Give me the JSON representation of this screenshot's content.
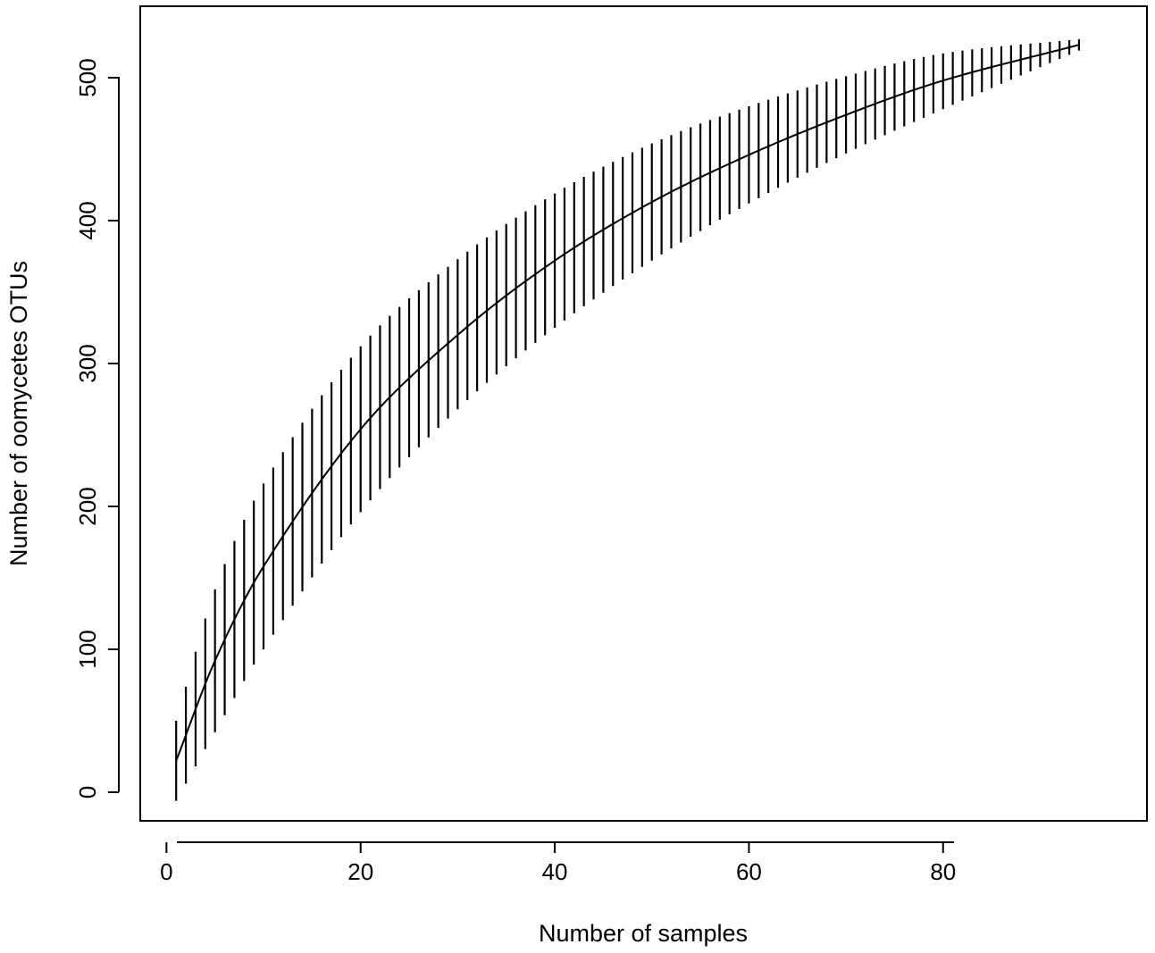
{
  "chart_data": {
    "type": "line",
    "title": "",
    "xlabel": "Number of samples",
    "ylabel": "Number of oomycetes OTUs",
    "xlim": [
      -2.7,
      101
    ],
    "ylim": [
      -20,
      550
    ],
    "xticks": [
      0,
      20,
      40,
      60,
      80
    ],
    "yticks": [
      0,
      100,
      200,
      300,
      400,
      500
    ],
    "grid": false,
    "legend": "none",
    "line_color": "#000000",
    "series": [
      {
        "n": 94,
        "x": [
          1,
          94
        ],
        "mean_start": 22,
        "mean_end": 523,
        "error_bars": {
          "lower_start": -6,
          "upper_start": 50,
          "lower_end": 519,
          "upper_end": 527
        },
        "sample_points": [
          {
            "x": 1,
            "y": 22,
            "lo": -6,
            "hi": 50
          },
          {
            "x": 5,
            "y": 92,
            "lo": 42,
            "hi": 142
          },
          {
            "x": 10,
            "y": 158,
            "lo": 100,
            "hi": 216
          },
          {
            "x": 20,
            "y": 254,
            "lo": 196,
            "hi": 312
          },
          {
            "x": 30,
            "y": 320,
            "lo": 268,
            "hi": 373
          },
          {
            "x": 40,
            "y": 372,
            "lo": 325,
            "hi": 419
          },
          {
            "x": 50,
            "y": 413,
            "lo": 372,
            "hi": 454
          },
          {
            "x": 60,
            "y": 446,
            "lo": 412,
            "hi": 480
          },
          {
            "x": 70,
            "y": 474,
            "lo": 447,
            "hi": 501
          },
          {
            "x": 80,
            "y": 498,
            "lo": 478,
            "hi": 517
          },
          {
            "x": 94,
            "y": 523,
            "lo": 519,
            "hi": 527
          }
        ]
      }
    ]
  }
}
